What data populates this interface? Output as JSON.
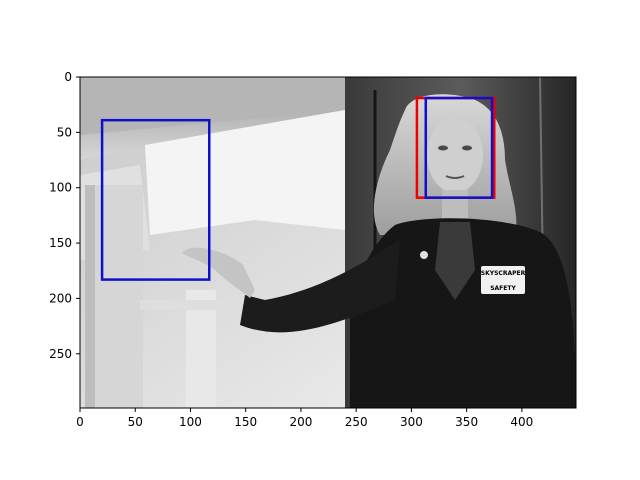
{
  "image": {
    "description_tag": "grayscale photo, woman in dark jacket pointing left, bounding boxes overlaid",
    "badge_line1": "SKYSCRAPER",
    "badge_line2": "SAFETY"
  },
  "axes": {
    "x_ticks": [
      "0",
      "50",
      "100",
      "150",
      "200",
      "250",
      "300",
      "350",
      "400"
    ],
    "y_ticks": [
      "0",
      "50",
      "100",
      "150",
      "200",
      "250"
    ],
    "xlim": [
      0,
      449
    ],
    "ylim": [
      299,
      0
    ]
  },
  "boxes": [
    {
      "name": "red-box",
      "color": "#ee0000",
      "x0": 305,
      "y0": 19,
      "x1": 375,
      "y1": 109
    },
    {
      "name": "blue-box-face",
      "color": "#1010cc",
      "x0": 313,
      "y0": 19,
      "x1": 373,
      "y1": 109
    },
    {
      "name": "blue-box-hand",
      "color": "#1010cc",
      "x0": 20,
      "y0": 39,
      "x1": 117,
      "y1": 183
    }
  ],
  "colors": {
    "red": "#ee0000",
    "blue": "#1010cc"
  }
}
